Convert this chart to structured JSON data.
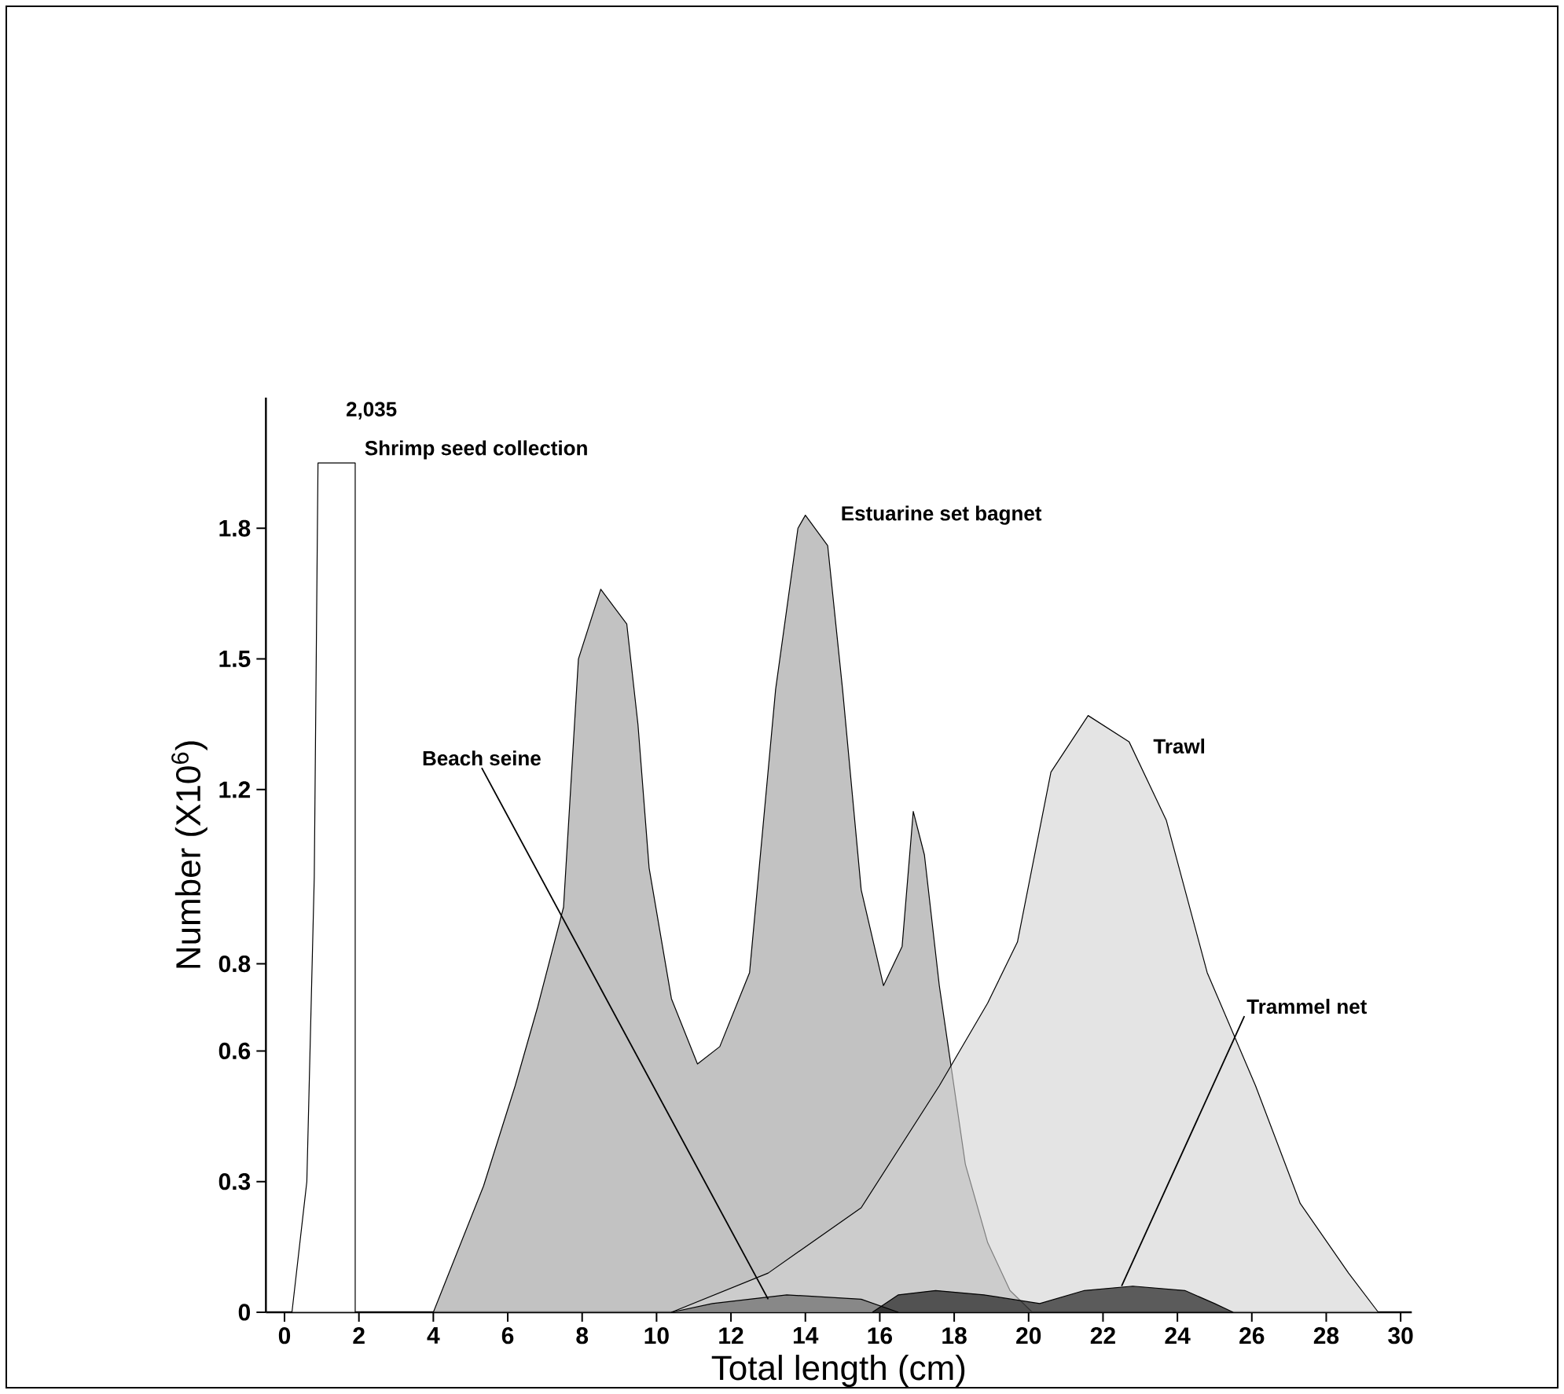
{
  "chart_data": {
    "type": "area",
    "xlabel": "Total length (cm)",
    "ylabel": "Number (X10$^{6}$)",
    "xlim": [
      -0.5,
      30.3
    ],
    "ylim": [
      0,
      2.1
    ],
    "xticks": [
      0,
      2,
      4,
      6,
      8,
      10,
      12,
      14,
      16,
      18,
      20,
      22,
      24,
      26,
      28,
      30
    ],
    "yticks": [
      0,
      0.3,
      0.6,
      0.8,
      1.2,
      1.5,
      1.8
    ],
    "annotations": [
      "2,035"
    ],
    "grid": false,
    "line_style": "solid",
    "marker": "none",
    "series": [
      {
        "name": "Shrimp seed collection",
        "color": "#ffffff",
        "x": [
          0.2,
          0.6,
          0.8,
          0.9,
          1.9,
          1.9
        ],
        "values": [
          0,
          0.3,
          1.0,
          1.95,
          1.95,
          0
        ]
      },
      {
        "name": "Estuarine set bagnet",
        "color": "#9a9a9a",
        "x": [
          4,
          5.35,
          6.2,
          6.8,
          7.5,
          7.9,
          8.5,
          9.2,
          9.5,
          9.8,
          10.4,
          11.1,
          11.7,
          12.5,
          13.2,
          13.8,
          14.0,
          14.6,
          15.0,
          15.5,
          16.1,
          16.6,
          16.9,
          17.2,
          17.6,
          18.3,
          18.9,
          19.5,
          20.1
        ],
        "values": [
          0,
          0.29,
          0.52,
          0.7,
          0.93,
          1.5,
          1.66,
          1.58,
          1.35,
          1.02,
          0.72,
          0.57,
          0.61,
          0.78,
          1.43,
          1.8,
          1.83,
          1.76,
          1.43,
          0.97,
          0.75,
          0.84,
          1.15,
          1.05,
          0.75,
          0.34,
          0.16,
          0.05,
          0
        ]
      },
      {
        "name": "Trawl",
        "color": "#d2d2d2",
        "x": [
          10.4,
          13,
          15.5,
          17.6,
          18.9,
          19.7,
          20.6,
          21.6,
          22.7,
          23.7,
          24.8,
          26.1,
          27.3,
          28.6,
          29.4
        ],
        "values": [
          0,
          0.09,
          0.24,
          0.52,
          0.71,
          0.85,
          1.24,
          1.37,
          1.31,
          1.13,
          0.78,
          0.52,
          0.25,
          0.09,
          0
        ]
      },
      {
        "name": "Beach seine",
        "color": "#5a5a5a",
        "x": [
          10.4,
          11.5,
          13.5,
          15.5,
          16.5
        ],
        "values": [
          0,
          0.02,
          0.04,
          0.03,
          0
        ]
      },
      {
        "name": "Trammel net",
        "color": "#000000",
        "x": [
          15.8,
          16.5,
          17.5,
          18.8,
          20.3,
          21.5,
          22.8,
          24.2,
          25.0,
          25.5
        ],
        "values": [
          0,
          0.04,
          0.05,
          0.04,
          0.02,
          0.05,
          0.06,
          0.05,
          0.02,
          0
        ]
      }
    ]
  }
}
